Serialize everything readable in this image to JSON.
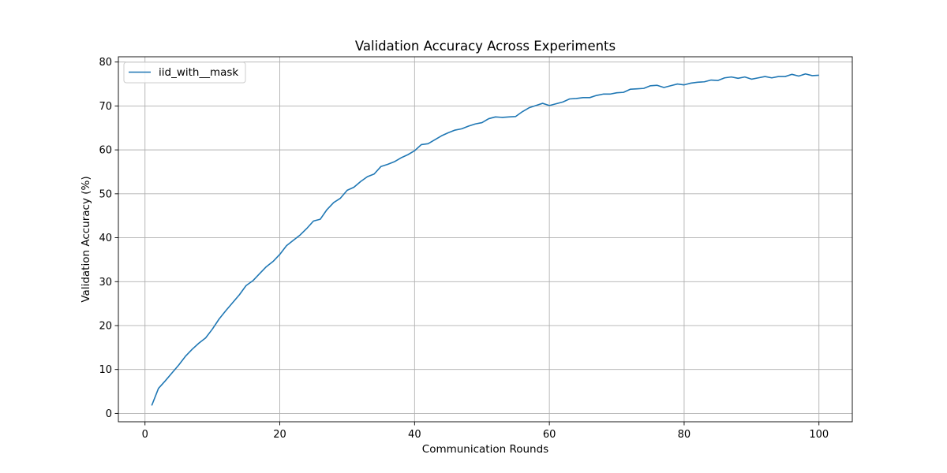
{
  "chart_data": {
    "type": "line",
    "title": "Validation Accuracy Across Experiments",
    "xlabel": "Communication Rounds",
    "ylabel": "Validation Accuracy (%)",
    "xlim": [
      -3.95,
      104.95
    ],
    "ylim": [
      -1.9,
      81.2
    ],
    "xticks": [
      0,
      20,
      40,
      60,
      80,
      100
    ],
    "yticks": [
      0,
      10,
      20,
      30,
      40,
      50,
      60,
      70,
      80
    ],
    "grid": true,
    "legend_position": "top-left",
    "series": [
      {
        "name": "iid_with__mask",
        "color": "#1f77b4",
        "x": [
          1,
          2,
          3,
          4,
          5,
          6,
          7,
          8,
          9,
          10,
          11,
          12,
          13,
          14,
          15,
          16,
          17,
          18,
          19,
          20,
          21,
          22,
          23,
          24,
          25,
          26,
          27,
          28,
          29,
          30,
          31,
          32,
          33,
          34,
          35,
          36,
          37,
          38,
          39,
          40,
          41,
          42,
          43,
          44,
          45,
          46,
          47,
          48,
          49,
          50,
          51,
          52,
          53,
          54,
          55,
          56,
          57,
          58,
          59,
          60,
          61,
          62,
          63,
          64,
          65,
          66,
          67,
          68,
          69,
          70,
          71,
          72,
          73,
          74,
          75,
          76,
          77,
          78,
          79,
          80,
          81,
          82,
          83,
          84,
          85,
          86,
          87,
          88,
          89,
          90,
          91,
          92,
          93,
          94,
          95,
          96,
          97,
          98,
          99,
          100
        ],
        "values": [
          1.8,
          5.7,
          7.4,
          9.2,
          11.0,
          13.0,
          14.6,
          16.0,
          17.2,
          19.2,
          21.5,
          23.4,
          25.2,
          27.0,
          29.1,
          30.2,
          31.8,
          33.4,
          34.6,
          36.2,
          38.2,
          39.4,
          40.6,
          42.1,
          43.8,
          44.2,
          46.4,
          48.0,
          49.0,
          50.8,
          51.5,
          52.8,
          53.9,
          54.5,
          56.2,
          56.7,
          57.3,
          58.2,
          58.9,
          59.8,
          61.2,
          61.4,
          62.3,
          63.2,
          63.9,
          64.5,
          64.8,
          65.4,
          65.9,
          66.2,
          67.1,
          67.5,
          67.4,
          67.5,
          67.6,
          68.7,
          69.6,
          70.1,
          70.6,
          70.1,
          70.5,
          70.9,
          71.6,
          71.7,
          71.9,
          71.9,
          72.4,
          72.7,
          72.7,
          73.0,
          73.1,
          73.8,
          73.9,
          74.0,
          74.6,
          74.7,
          74.2,
          74.6,
          75.0,
          74.8,
          75.2,
          75.4,
          75.5,
          75.9,
          75.8,
          76.4,
          76.6,
          76.3,
          76.6,
          76.1,
          76.4,
          76.7,
          76.4,
          76.7,
          76.7,
          77.2,
          76.8,
          77.3,
          76.9,
          77.0
        ]
      }
    ]
  }
}
